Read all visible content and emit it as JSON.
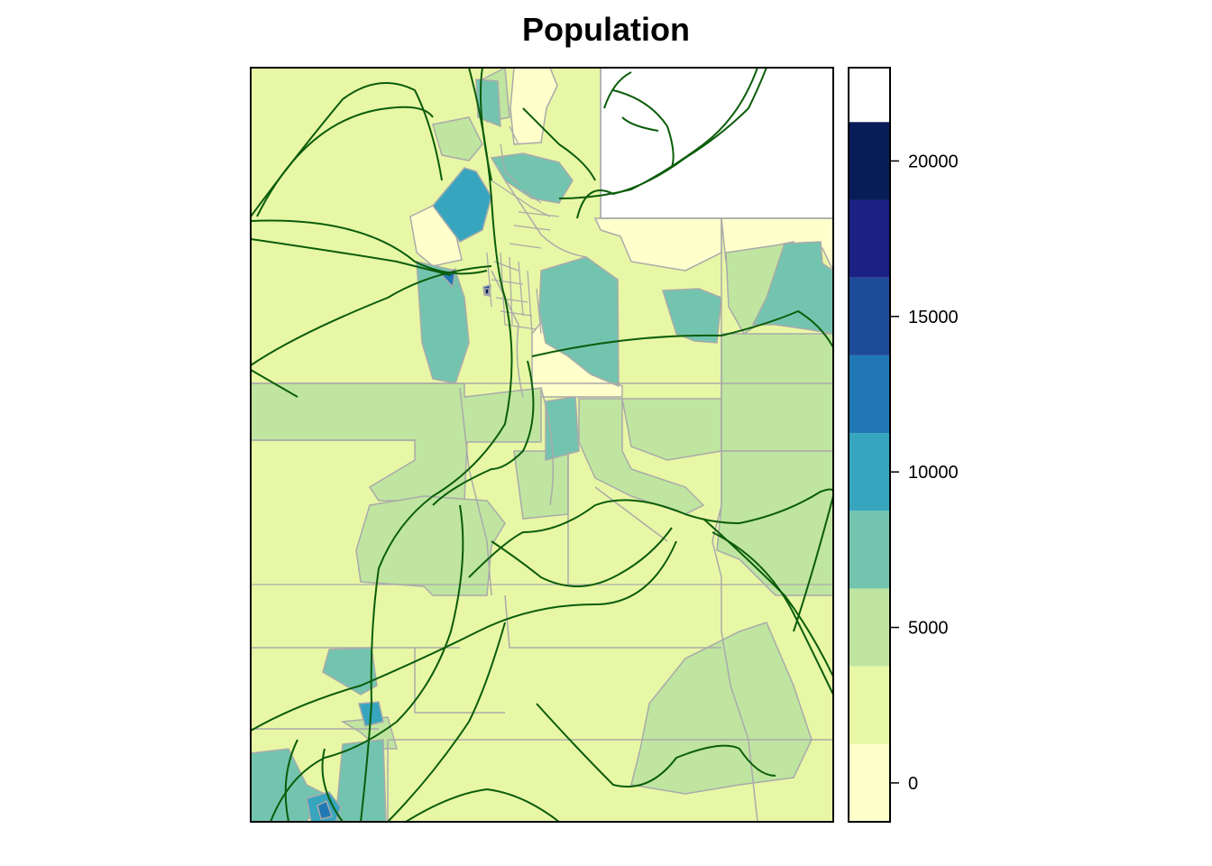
{
  "map": {
    "title": "Population"
  },
  "legend": {
    "breaks": [
      -1250,
      1250,
      3750,
      6250,
      8750,
      11250,
      13750,
      16250,
      18750,
      21250,
      23000
    ],
    "colors": [
      "#ffffcc",
      "#e8f7a5",
      "#bfe5a0",
      "#73c4af",
      "#38a5bf",
      "#2178b4",
      "#1e4b98",
      "#1b2184",
      "#081d58"
    ],
    "ticks": [
      {
        "value": 0,
        "label": "0"
      },
      {
        "value": 5000,
        "label": "5000"
      },
      {
        "value": 10000,
        "label": "10000"
      },
      {
        "value": 15000,
        "label": "15000"
      },
      {
        "value": 20000,
        "label": "20000"
      }
    ]
  },
  "style": {
    "boundary_color": "#aaaaaa",
    "road_color": "#0b5d0b",
    "frame_color": "#000000"
  }
}
